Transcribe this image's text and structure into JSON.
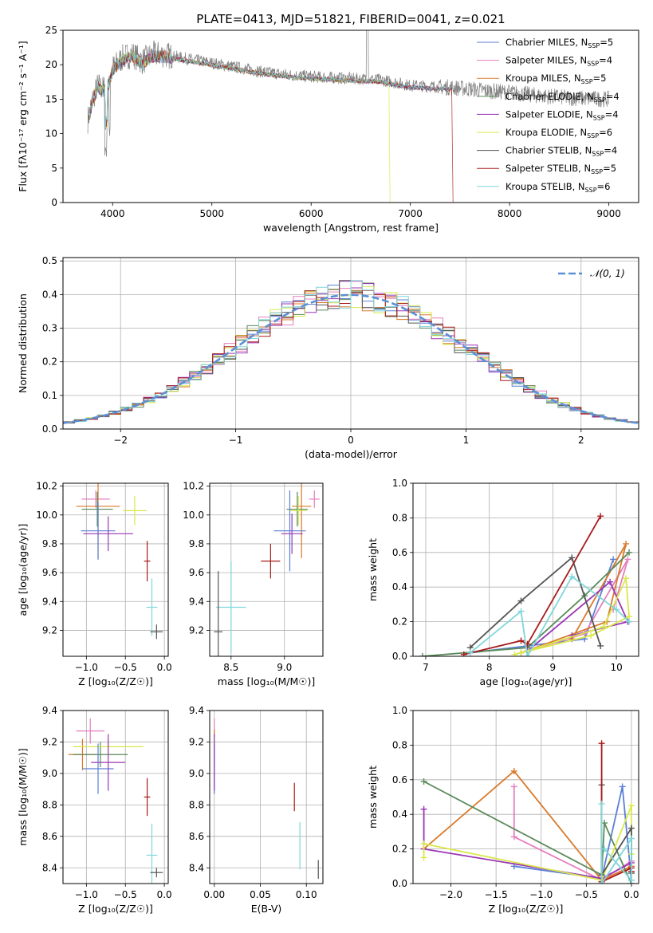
{
  "colors": {
    "chabrier_miles": "#5b7fd6",
    "salpeter_miles": "#e57fbf",
    "kroupa_miles": "#d97a2b",
    "chabrier_elodie": "#5a8a5a",
    "salpeter_elodie": "#9b36b6",
    "kroupa_elodie": "#d9e84a",
    "chabrier_stelib": "#555555",
    "salpeter_stelib": "#a81a1a",
    "kroupa_stelib": "#7fd6d9",
    "gaussian": "#5b8fd6"
  },
  "chart_data": [
    {
      "id": "spectrum",
      "type": "line",
      "title": "PLATE=0413, MJD=51821, FIBERID=0041, z=0.021",
      "xlabel": "wavelength [Angstrom, rest frame]",
      "ylabel": "Flux [fλ10⁻¹⁷ erg cm⁻² s⁻¹ A⁻¹]",
      "xlim": [
        3500,
        9300
      ],
      "ylim": [
        0,
        25
      ],
      "xticks": [
        4000,
        5000,
        6000,
        7000,
        8000,
        9000
      ],
      "yticks": [
        0,
        5,
        10,
        15,
        20,
        25
      ],
      "legend": {
        "position": "top-right",
        "entries": [
          {
            "label": "Chabrier MILES, N",
            "sub": "SSP",
            "suffix": "=5",
            "color": "#5b7fd6"
          },
          {
            "label": "Salpeter MILES, N",
            "sub": "SSP",
            "suffix": "=4",
            "color": "#e57fbf"
          },
          {
            "label": "Kroupa MILES, N",
            "sub": "SSP",
            "suffix": "=5",
            "color": "#d97a2b"
          },
          {
            "label": "Chabrier ELODIE, N",
            "sub": "SSP",
            "suffix": "=4",
            "color": "#5a8a5a"
          },
          {
            "label": "Salpeter ELODIE, N",
            "sub": "SSP",
            "suffix": "=4",
            "color": "#9b36b6"
          },
          {
            "label": "Kroupa ELODIE, N",
            "sub": "SSP",
            "suffix": "=6",
            "color": "#d9e84a"
          },
          {
            "label": "Chabrier STELIB, N",
            "sub": "SSP",
            "suffix": "=4",
            "color": "#555555"
          },
          {
            "label": "Salpeter STELIB, N",
            "sub": "SSP",
            "suffix": "=5",
            "color": "#a81a1a"
          },
          {
            "label": "Kroupa STELIB, N",
            "sub": "SSP",
            "suffix": "=6",
            "color": "#7fd6d9"
          }
        ]
      },
      "data_envelope": {
        "wavelength": [
          3750,
          3800,
          3850,
          3900,
          3950,
          4000,
          4100,
          4200,
          4300,
          4400,
          4500,
          4700,
          4900,
          5100,
          5300,
          5500,
          5800,
          6100,
          6400,
          6700,
          7000,
          7300,
          7600,
          7800,
          8000,
          8300,
          8600,
          9000
        ],
        "flux": [
          12,
          15,
          17,
          16.5,
          17,
          19.5,
          21,
          21.5,
          20.5,
          21.5,
          21.5,
          21,
          20.5,
          20,
          19.5,
          19,
          18.5,
          18.2,
          18,
          17.8,
          17,
          16.8,
          16.5,
          16.2,
          16,
          15.5,
          15.2,
          15
        ]
      }
    },
    {
      "id": "residuals",
      "type": "histogram",
      "xlabel": "(data-model)/error",
      "ylabel": "Normed distribution",
      "xlim": [
        -2.5,
        2.5
      ],
      "ylim": [
        0,
        0.51
      ],
      "xticks": [
        -2,
        -1,
        0,
        1,
        2
      ],
      "yticks": [
        0.0,
        0.1,
        0.2,
        0.3,
        0.4,
        0.5
      ],
      "grid": true,
      "legend": {
        "position": "top-right",
        "label": "𝒩(0, 1)"
      },
      "bin_width": 0.1,
      "gaussian": {
        "mean": 0,
        "sigma": 1
      }
    },
    {
      "id": "age_vs_Z",
      "type": "errorbar",
      "xlabel": "Z [log₁₀(Z/Z☉)]",
      "ylabel": "age  [log₁₀(age/yr)]",
      "xlim": [
        -1.3,
        0.05
      ],
      "ylim": [
        9.02,
        10.22
      ],
      "xticks": [
        -1.0,
        -0.5,
        0.0
      ],
      "yticks": [
        9.2,
        9.4,
        9.6,
        9.8,
        10.0,
        10.2
      ],
      "grid": true,
      "points": [
        {
          "x": -0.88,
          "y": 10.11,
          "xerr": 0.18,
          "yerr": 0.06,
          "color": "#e57fbf"
        },
        {
          "x": -0.85,
          "y": 10.06,
          "xerr": 0.28,
          "yerr": 0.36,
          "color": "#d97a2b"
        },
        {
          "x": -0.86,
          "y": 10.04,
          "xerr": 0.2,
          "yerr": 0.12,
          "color": "#5a8a5a"
        },
        {
          "x": -0.38,
          "y": 10.03,
          "xerr": 0.15,
          "yerr": 0.1,
          "color": "#d9e84a"
        },
        {
          "x": -0.85,
          "y": 9.89,
          "xerr": 0.22,
          "yerr": 0.2,
          "color": "#5b7fd6"
        },
        {
          "x": -0.72,
          "y": 9.87,
          "xerr": 0.32,
          "yerr": 0.12,
          "color": "#9b36b6"
        },
        {
          "x": -0.22,
          "y": 9.68,
          "xerr": 0.04,
          "yerr": 0.14,
          "color": "#a81a1a"
        },
        {
          "x": -0.16,
          "y": 9.36,
          "xerr": 0.07,
          "yerr": 0.2,
          "color": "#7fd6d9"
        },
        {
          "x": -0.1,
          "y": 9.19,
          "xerr": 0.08,
          "yerr": 0.05,
          "color": "#555555"
        }
      ]
    },
    {
      "id": "age_vs_mass",
      "type": "errorbar",
      "xlabel": "mass [log₁₀(M/M☉)]",
      "ylabel": "",
      "xlim": [
        8.3,
        9.36
      ],
      "ylim": [
        9.02,
        10.22
      ],
      "xticks": [
        8.5,
        9.0
      ],
      "yticks": [
        9.2,
        9.4,
        9.6,
        9.8,
        10.0,
        10.2
      ],
      "grid": true,
      "points": [
        {
          "x": 9.28,
          "y": 10.11,
          "xerr": 0.05,
          "yerr": 0.06,
          "color": "#e57fbf"
        },
        {
          "x": 9.16,
          "y": 10.06,
          "xerr": 0.09,
          "yerr": 0.36,
          "color": "#d97a2b"
        },
        {
          "x": 9.12,
          "y": 10.04,
          "xerr": 0.1,
          "yerr": 0.12,
          "color": "#5a8a5a"
        },
        {
          "x": 9.13,
          "y": 10.03,
          "xerr": 0.08,
          "yerr": 0.1,
          "color": "#d9e84a"
        },
        {
          "x": 9.05,
          "y": 9.89,
          "xerr": 0.15,
          "yerr": 0.28,
          "color": "#5b7fd6"
        },
        {
          "x": 9.07,
          "y": 9.87,
          "xerr": 0.1,
          "yerr": 0.14,
          "color": "#9b36b6"
        },
        {
          "x": 8.87,
          "y": 9.68,
          "xerr": 0.09,
          "yerr": 0.12,
          "color": "#a81a1a"
        },
        {
          "x": 8.5,
          "y": 9.36,
          "xerr": 0.14,
          "yerr": 0.32,
          "color": "#7fd6d9"
        },
        {
          "x": 8.38,
          "y": 9.19,
          "xerr": 0.04,
          "yerr": 0.42,
          "color": "#555555"
        }
      ]
    },
    {
      "id": "mass_weight_vs_age",
      "type": "line",
      "xlabel": "age  [log₁₀(age/yr)]",
      "ylabel": "mass weight",
      "xlim": [
        6.8,
        10.35
      ],
      "ylim": [
        0.0,
        1.0
      ],
      "xticks": [
        7,
        8,
        9,
        10
      ],
      "yticks": [
        0.0,
        0.2,
        0.4,
        0.6,
        0.8,
        1.0
      ],
      "grid": true,
      "series": [
        {
          "color": "#5b7fd6",
          "points": [
            [
              7.7,
              0.02
            ],
            [
              8.6,
              0.06
            ],
            [
              9.5,
              0.1
            ],
            [
              9.95,
              0.56
            ]
          ]
        },
        {
          "color": "#e57fbf",
          "points": [
            [
              8.5,
              0.02
            ],
            [
              9.5,
              0.13
            ],
            [
              10.18,
              0.56
            ],
            [
              9.95,
              0.27
            ]
          ]
        },
        {
          "color": "#d97a2b",
          "points": [
            [
              8.5,
              0.02
            ],
            [
              9.85,
              0.2
            ],
            [
              10.15,
              0.65
            ],
            [
              9.3,
              0.1
            ]
          ]
        },
        {
          "color": "#5a8a5a",
          "points": [
            [
              6.95,
              0.0
            ],
            [
              8.6,
              0.05
            ],
            [
              9.5,
              0.35
            ],
            [
              10.2,
              0.6
            ]
          ]
        },
        {
          "color": "#9b36b6",
          "points": [
            [
              8.6,
              0.03
            ],
            [
              9.9,
              0.43
            ],
            [
              10.18,
              0.2
            ],
            [
              9.3,
              0.12
            ]
          ]
        },
        {
          "color": "#d9e84a",
          "points": [
            [
              8.4,
              0.01
            ],
            [
              9.8,
              0.17
            ],
            [
              10.15,
              0.45
            ],
            [
              10.2,
              0.23
            ],
            [
              9.6,
              0.12
            ],
            [
              8.5,
              0.02
            ]
          ]
        },
        {
          "color": "#555555",
          "points": [
            [
              7.7,
              0.05
            ],
            [
              8.5,
              0.32
            ],
            [
              9.3,
              0.57
            ],
            [
              9.75,
              0.06
            ]
          ]
        },
        {
          "color": "#a81a1a",
          "points": [
            [
              7.6,
              0.01
            ],
            [
              8.5,
              0.09
            ],
            [
              8.6,
              0.07
            ],
            [
              9.75,
              0.81
            ]
          ]
        },
        {
          "color": "#7fd6d9",
          "points": [
            [
              7.7,
              0.02
            ],
            [
              8.5,
              0.26
            ],
            [
              8.6,
              0.0
            ],
            [
              9.3,
              0.46
            ],
            [
              10.0,
              0.27
            ],
            [
              10.2,
              0.2
            ]
          ]
        }
      ]
    },
    {
      "id": "mass_vs_Z",
      "type": "errorbar",
      "xlabel": "Z [log₁₀(Z/Z☉)]",
      "ylabel": "mass [log₁₀(M/M☉)]",
      "xlim": [
        -1.3,
        0.05
      ],
      "ylim": [
        8.3,
        9.4
      ],
      "xticks": [
        -1.0,
        -0.5,
        0.0
      ],
      "yticks": [
        8.4,
        8.6,
        8.8,
        9.0,
        9.2,
        9.4
      ],
      "grid": true,
      "points": [
        {
          "x": -0.95,
          "y": 9.27,
          "xerr": 0.18,
          "yerr": 0.08,
          "color": "#e57fbf"
        },
        {
          "x": -1.05,
          "y": 9.12,
          "xerr": 0.18,
          "yerr": 0.1,
          "color": "#d97a2b"
        },
        {
          "x": -0.82,
          "y": 9.12,
          "xerr": 0.35,
          "yerr": 0.08,
          "color": "#5a8a5a"
        },
        {
          "x": -0.72,
          "y": 9.17,
          "xerr": 0.45,
          "yerr": 0.05,
          "color": "#d9e84a"
        },
        {
          "x": -0.85,
          "y": 9.03,
          "xerr": 0.2,
          "yerr": 0.16,
          "color": "#5b7fd6"
        },
        {
          "x": -0.72,
          "y": 9.07,
          "xerr": 0.22,
          "yerr": 0.18,
          "color": "#9b36b6"
        },
        {
          "x": -0.22,
          "y": 8.85,
          "xerr": 0.04,
          "yerr": 0.12,
          "color": "#a81a1a"
        },
        {
          "x": -0.16,
          "y": 8.48,
          "xerr": 0.07,
          "yerr": 0.2,
          "color": "#7fd6d9"
        },
        {
          "x": -0.1,
          "y": 8.37,
          "xerr": 0.08,
          "yerr": 0.03,
          "color": "#555555"
        }
      ]
    },
    {
      "id": "mass_vs_ebv",
      "type": "errorbar",
      "xlabel": "E(B-V)",
      "ylabel": "",
      "xlim": [
        -0.005,
        0.118
      ],
      "ylim": [
        8.3,
        9.4
      ],
      "xticks": [
        0.0,
        0.05,
        0.1
      ],
      "xtick_labels": [
        "0.00",
        "0.05",
        "0.10"
      ],
      "yticks": [
        8.4,
        8.6,
        8.8,
        9.0,
        9.2,
        9.4
      ],
      "grid": true,
      "points": [
        {
          "x": 0.0,
          "y": 9.27,
          "xerr": 0.0,
          "yerr": 0.08,
          "color": "#e57fbf"
        },
        {
          "x": 0.0,
          "y": 9.12,
          "xerr": 0.0,
          "yerr": 0.16,
          "color": "#d97a2b"
        },
        {
          "x": 0.0,
          "y": 9.12,
          "xerr": 0.0,
          "yerr": 0.1,
          "color": "#5a8a5a"
        },
        {
          "x": 0.0,
          "y": 9.05,
          "xerr": 0.0,
          "yerr": 0.18,
          "color": "#d9e84a"
        },
        {
          "x": 0.0,
          "y": 9.03,
          "xerr": 0.0,
          "yerr": 0.16,
          "color": "#5b7fd6"
        },
        {
          "x": 0.0,
          "y": 9.07,
          "xerr": 0.0,
          "yerr": 0.18,
          "color": "#9b36b6"
        },
        {
          "x": 0.087,
          "y": 8.85,
          "xerr": 0.0,
          "yerr": 0.09,
          "color": "#a81a1a"
        },
        {
          "x": 0.093,
          "y": 8.54,
          "xerr": 0.0,
          "yerr": 0.15,
          "color": "#7fd6d9"
        },
        {
          "x": 0.113,
          "y": 8.39,
          "xerr": 0.0,
          "yerr": 0.06,
          "color": "#555555"
        }
      ]
    },
    {
      "id": "mass_weight_vs_Z",
      "type": "line",
      "xlabel": "Z [log₁₀(Z/Z☉)]",
      "ylabel": "mass weight",
      "xlim": [
        -2.42,
        0.08
      ],
      "ylim": [
        0.0,
        1.0
      ],
      "xticks": [
        -2.0,
        -1.5,
        -1.0,
        -0.5,
        0.0
      ],
      "yticks": [
        0.0,
        0.2,
        0.4,
        0.6,
        0.8,
        1.0
      ],
      "grid": true,
      "series": [
        {
          "color": "#5b7fd6",
          "points": [
            [
              -1.3,
              0.1
            ],
            [
              -0.33,
              0.03
            ],
            [
              -0.1,
              0.56
            ],
            [
              0.0,
              0.02
            ]
          ]
        },
        {
          "color": "#e57fbf",
          "points": [
            [
              -1.3,
              0.56
            ],
            [
              -1.3,
              0.27
            ],
            [
              -0.33,
              0.02
            ],
            [
              0.0,
              0.13
            ]
          ]
        },
        {
          "color": "#d97a2b",
          "points": [
            [
              -2.3,
              0.2
            ],
            [
              -1.3,
              0.65
            ],
            [
              -0.33,
              0.02
            ],
            [
              0.0,
              0.1
            ]
          ]
        },
        {
          "color": "#5a8a5a",
          "points": [
            [
              -2.3,
              0.59
            ],
            [
              -0.33,
              0.05
            ],
            [
              -0.3,
              0.35
            ],
            [
              0.0,
              0.0
            ]
          ]
        },
        {
          "color": "#9b36b6",
          "points": [
            [
              -2.3,
              0.43
            ],
            [
              -2.3,
              0.2
            ],
            [
              -0.33,
              0.03
            ],
            [
              0.0,
              0.12
            ]
          ]
        },
        {
          "color": "#d9e84a",
          "points": [
            [
              -2.3,
              0.15
            ],
            [
              -2.3,
              0.23
            ],
            [
              -0.33,
              0.02
            ],
            [
              0.0,
              0.45
            ],
            [
              0.0,
              0.17
            ]
          ]
        },
        {
          "color": "#555555",
          "points": [
            [
              -0.33,
              0.57
            ],
            [
              -0.33,
              0.05
            ],
            [
              0.0,
              0.32
            ],
            [
              0.0,
              0.06
            ]
          ]
        },
        {
          "color": "#a81a1a",
          "points": [
            [
              -0.33,
              0.81
            ],
            [
              -0.33,
              0.01
            ],
            [
              0.0,
              0.09
            ],
            [
              0.0,
              0.07
            ]
          ]
        },
        {
          "color": "#7fd6d9",
          "points": [
            [
              -0.33,
              0.46
            ],
            [
              -0.33,
              0.0
            ],
            [
              0.0,
              0.26
            ],
            [
              0.0,
              0.02
            ],
            [
              -0.3,
              0.2
            ]
          ]
        }
      ]
    }
  ]
}
